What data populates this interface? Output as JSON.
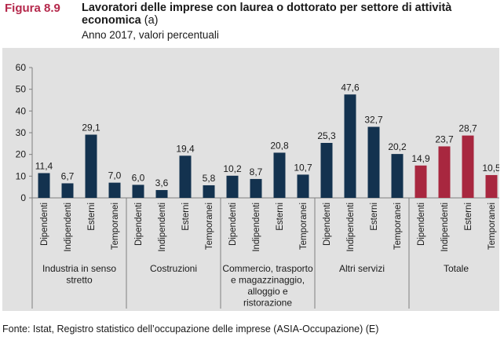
{
  "header": {
    "figure_label": "Figura 8.9",
    "title": "Lavoratori delle imprese con laurea o dottorato per settore di attività economica",
    "title_note": "(a)",
    "subtitle": "Anno 2017, valori percentuali"
  },
  "source": "Fonte: Istat, Registro statistico dell’occupazione delle imprese (ASIA-Occupazione) (E)",
  "colors": {
    "main": "#13324f",
    "total": "#a8273f",
    "background": "#e1e1e1"
  },
  "chart_data": {
    "type": "bar",
    "ylim": [
      0,
      60
    ],
    "yticks": [
      0,
      10,
      20,
      30,
      40,
      50,
      60
    ],
    "groups": [
      {
        "label": [
          "Industria in senso",
          "stretto"
        ],
        "categories": [
          "Dipendenti",
          "Indipendenti",
          "Esterni",
          "Temporanei"
        ],
        "values": [
          11.4,
          6.7,
          29.1,
          7.0
        ],
        "labels": [
          "11,4",
          "6,7",
          "29,1",
          "7,0"
        ],
        "color": "#13324f"
      },
      {
        "label": [
          "Costruzioni"
        ],
        "categories": [
          "Dipendenti",
          "Indipendenti",
          "Esterni",
          "Temporanei"
        ],
        "values": [
          6.0,
          3.6,
          19.4,
          5.8
        ],
        "labels": [
          "6,0",
          "3,6",
          "19,4",
          "5,8"
        ],
        "color": "#13324f"
      },
      {
        "label": [
          "Commercio, trasporto",
          "e magazzinaggio,",
          "alloggio e",
          "ristorazione"
        ],
        "categories": [
          "Dipendenti",
          "Indipendenti",
          "Esterni",
          "Temporanei"
        ],
        "values": [
          10.2,
          8.7,
          20.8,
          10.7
        ],
        "labels": [
          "10,2",
          "8,7",
          "20,8",
          "10,7"
        ],
        "color": "#13324f"
      },
      {
        "label": [
          "Altri servizi"
        ],
        "categories": [
          "Dipendenti",
          "Indipendenti",
          "Esterni",
          "Temporanei"
        ],
        "values": [
          25.3,
          47.6,
          32.7,
          20.2
        ],
        "labels": [
          "25,3",
          "47,6",
          "32,7",
          "20,2"
        ],
        "color": "#13324f"
      },
      {
        "label": [
          "Totale"
        ],
        "categories": [
          "Dipendenti",
          "Indipendenti",
          "Esterni",
          "Temporanei"
        ],
        "values": [
          14.9,
          23.7,
          28.7,
          10.5
        ],
        "labels": [
          "14,9",
          "23,7",
          "28,7",
          "10,5"
        ],
        "color": "#a8273f"
      }
    ]
  }
}
